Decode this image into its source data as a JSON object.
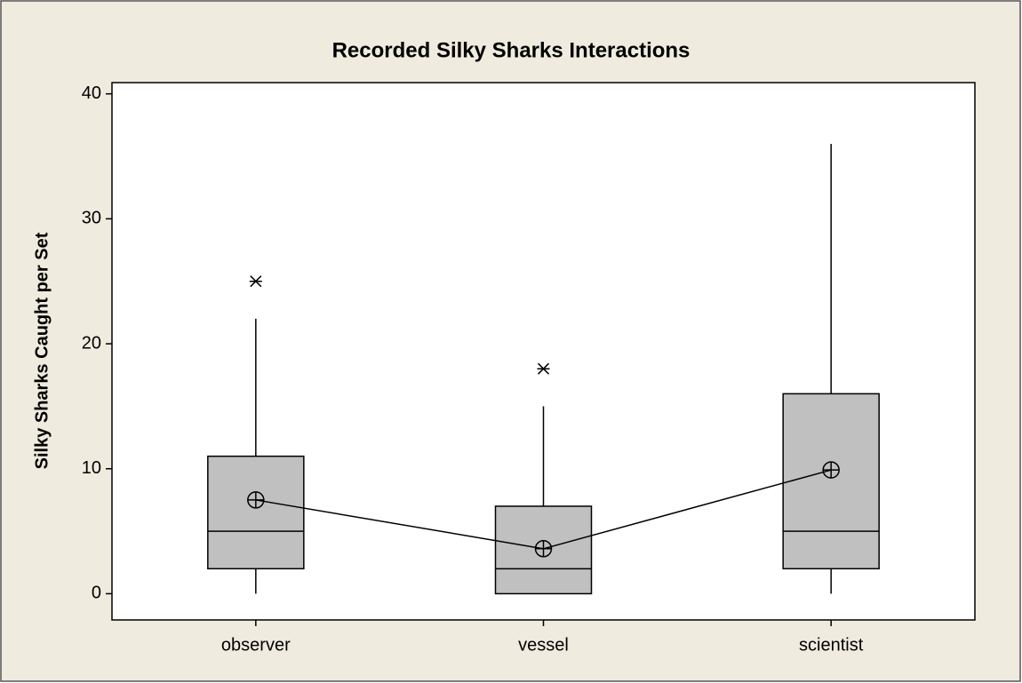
{
  "chart_data": {
    "type": "box",
    "title": "Recorded Silky Sharks Interactions",
    "y_label": "Silky Sharks Caught per Set",
    "categories": [
      "observer",
      "vessel",
      "scientist"
    ],
    "boxes": [
      {
        "min": 0,
        "q1": 2,
        "median": 5,
        "q3": 11,
        "max": 22,
        "outliers": [
          25
        ],
        "mean": 7.5
      },
      {
        "min": 0,
        "q1": 0,
        "median": 2,
        "q3": 7,
        "max": 15,
        "outliers": [
          18
        ],
        "mean": 3.6
      },
      {
        "min": 0,
        "q1": 2,
        "median": 5,
        "q3": 16,
        "max": 36,
        "outliers": [],
        "mean": 9.9
      }
    ],
    "color": "#c0c0c0",
    "ylim": [
      -2.1,
      40.9
    ],
    "yticks": [
      0,
      10,
      20,
      30,
      40
    ]
  }
}
